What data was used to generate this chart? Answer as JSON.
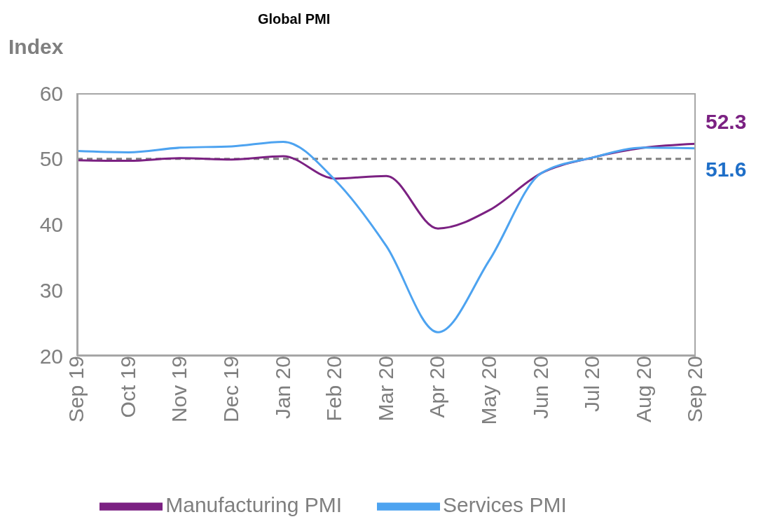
{
  "chart_data": {
    "type": "line",
    "title": "Global PMI",
    "ylabel": "Index",
    "categories": [
      "Sep 19",
      "Oct 19",
      "Nov 19",
      "Dec 19",
      "Jan 20",
      "Feb 20",
      "Mar 20",
      "Apr 20",
      "May 20",
      "Jun 20",
      "Jul 20",
      "Aug 20",
      "Sep 20"
    ],
    "series": [
      {
        "name": "Manufacturing PMI",
        "color": "#7b2182",
        "values": [
          49.8,
          49.7,
          50.1,
          49.9,
          50.4,
          47.0,
          47.4,
          39.4,
          42.2,
          47.8,
          50.2,
          51.7,
          52.3
        ]
      },
      {
        "name": "Services PMI",
        "color": "#4da3f0",
        "values": [
          51.2,
          51.0,
          51.7,
          51.9,
          52.6,
          46.8,
          36.7,
          23.6,
          34.6,
          47.8,
          50.2,
          51.7,
          51.6
        ]
      }
    ],
    "ylim": [
      20,
      60
    ],
    "yticks": [
      20,
      30,
      40,
      50,
      60
    ],
    "grid": false,
    "legend": "bottom",
    "marker": "none",
    "line_style": "solid",
    "ref_lines": [
      {
        "axis": "y",
        "value": 50,
        "color": "#808080",
        "line_style": "dashed"
      }
    ],
    "annotations": [
      {
        "text": "52.3",
        "x": "Sep 20",
        "y": 52.3
      },
      {
        "text": "51.6",
        "x": "Sep 20",
        "y": 51.6
      }
    ]
  }
}
